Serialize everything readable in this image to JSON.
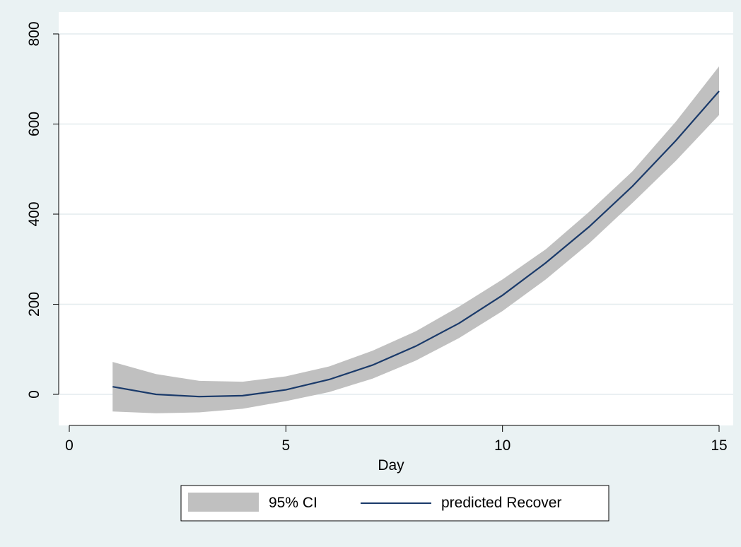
{
  "chart_data": {
    "type": "line",
    "title": "",
    "xlabel": "Day",
    "ylabel": "",
    "xlim": [
      0,
      15
    ],
    "ylim": [
      -70,
      820
    ],
    "xticks": [
      0,
      5,
      10,
      15
    ],
    "yticks": [
      0,
      200,
      400,
      600,
      800
    ],
    "grid": "horizontal",
    "legend_position": "bottom",
    "x": [
      1,
      2,
      3,
      4,
      5,
      6,
      7,
      8,
      9,
      10,
      11,
      12,
      13,
      14,
      15
    ],
    "series": [
      {
        "name": "95% CI",
        "kind": "band",
        "color": "#c0c0c0",
        "lower": [
          -38,
          -42,
          -40,
          -32,
          -15,
          5,
          35,
          75,
          125,
          185,
          255,
          335,
          425,
          518,
          620
        ],
        "upper": [
          72,
          45,
          30,
          28,
          40,
          62,
          97,
          140,
          195,
          255,
          322,
          405,
          495,
          605,
          728
        ]
      },
      {
        "name": "predicted Recover",
        "kind": "line",
        "color": "#1a3a6a",
        "values": [
          17,
          0,
          -5,
          -3,
          10,
          33,
          65,
          107,
          158,
          220,
          292,
          372,
          462,
          563,
          673
        ]
      }
    ]
  }
}
